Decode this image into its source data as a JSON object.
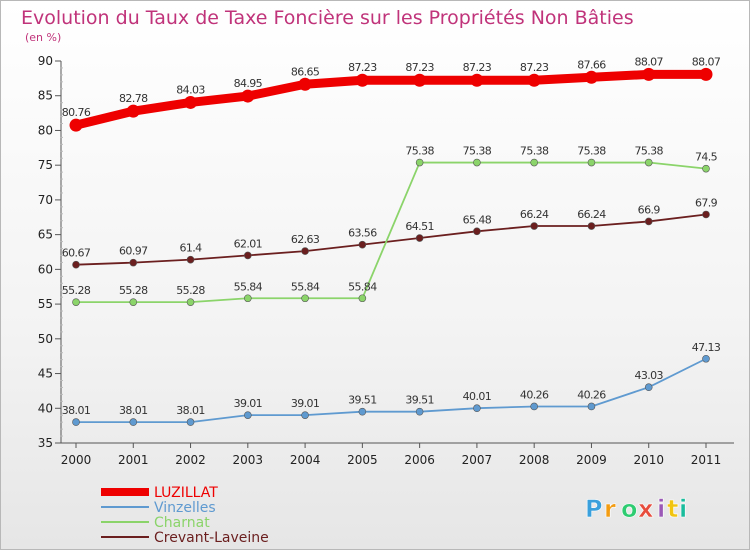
{
  "chart_data": {
    "type": "line",
    "title": "Evolution du Taux de Taxe Foncière sur les Propriétés Non Bâties",
    "subtitle": "(en %)",
    "xlabel": "",
    "ylabel": "",
    "ylim": [
      35,
      90
    ],
    "yticks": [
      35,
      40,
      45,
      50,
      55,
      60,
      65,
      70,
      75,
      80,
      85,
      90
    ],
    "categories": [
      "2000",
      "2001",
      "2002",
      "2003",
      "2004",
      "2005",
      "2006",
      "2007",
      "2008",
      "2009",
      "2010",
      "2011"
    ],
    "series": [
      {
        "name": "LUZILLAT",
        "color": "#ee0000",
        "values": [
          80.76,
          82.78,
          84.03,
          84.95,
          86.65,
          87.23,
          87.23,
          87.23,
          87.23,
          87.66,
          88.07,
          88.07
        ],
        "labels": [
          "80.76",
          "82.78",
          "84.03",
          "84.95",
          "86.65",
          "87.23",
          "87.23",
          "87.23",
          "87.23",
          "87.66",
          "88.07",
          "88.07"
        ]
      },
      {
        "name": "Vinzelles",
        "color": "#5f9ad0",
        "values": [
          38.01,
          38.01,
          38.01,
          39.01,
          39.01,
          39.51,
          39.51,
          40.01,
          40.26,
          40.26,
          43.03,
          47.13
        ],
        "labels": [
          "38.01",
          "38.01",
          "38.01",
          "39.01",
          "39.01",
          "39.51",
          "39.51",
          "40.01",
          "40.26",
          "40.26",
          "43.03",
          "47.13"
        ]
      },
      {
        "name": "Charnat",
        "color": "#8bd46a",
        "values": [
          55.28,
          55.28,
          55.28,
          55.84,
          55.84,
          55.84,
          75.38,
          75.38,
          75.38,
          75.38,
          75.38,
          74.5
        ],
        "labels": [
          "55.28",
          "55.28",
          "55.28",
          "55.84",
          "55.84",
          "55.84",
          "75.38",
          "75.38",
          "75.38",
          "75.38",
          "75.38",
          "74.5"
        ]
      },
      {
        "name": "Crevant-Laveine",
        "color": "#6b1f1f",
        "values": [
          60.67,
          60.97,
          61.4,
          62.01,
          62.63,
          63.56,
          64.51,
          65.48,
          66.24,
          66.24,
          66.9,
          67.9
        ],
        "labels": [
          "60.67",
          "60.97",
          "61.4",
          "62.01",
          "62.63",
          "63.56",
          "64.51",
          "65.48",
          "66.24",
          "66.24",
          "66.9",
          "67.9"
        ]
      }
    ],
    "legend_position": "bottom-left",
    "grid": false
  },
  "logo": {
    "letters": [
      "P",
      "r",
      "o",
      "x",
      "i",
      "t",
      "i"
    ],
    "colors": [
      "#3aa0dc",
      "#f39c12",
      "#2ecc71",
      "#e74c3c",
      "#9b59b6",
      "#f1c40f",
      "#1abc9c"
    ],
    "alt": "Proxiti"
  }
}
